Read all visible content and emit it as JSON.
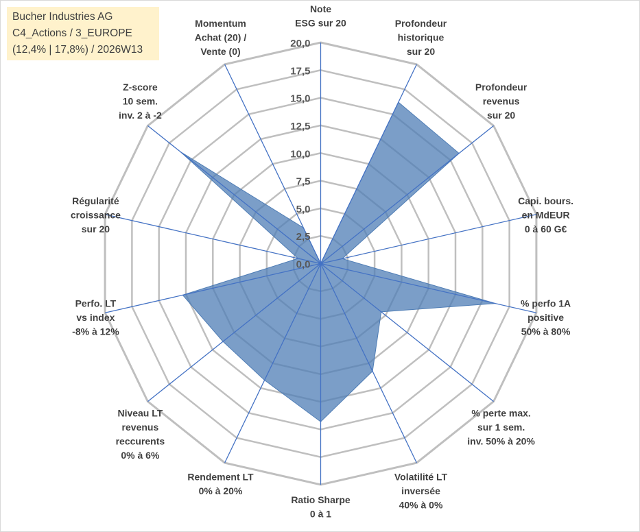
{
  "title": {
    "line1": "Bucher Industries AG",
    "line2": "C4_Actions / 3_EUROPE",
    "line3": "(12,4% | 17,8%) / 2026W13"
  },
  "colors": {
    "fill": "#4f7db5",
    "axis": "#4472c4",
    "grid": "#bfbfbf",
    "title_bg": "#fff2cc"
  },
  "chart_data": {
    "type": "radar",
    "title": "Bucher Industries AG",
    "rmin": 0,
    "rmax": 20,
    "tick_step": 2.5,
    "tick_labels": [
      "0,0",
      "2,5",
      "5,0",
      "7,5",
      "10,0",
      "12,5",
      "15,0",
      "17,5",
      "20,0"
    ],
    "axes": [
      [
        "Note",
        "ESG sur 20"
      ],
      [
        "Profondeur",
        "historique",
        "sur 20"
      ],
      [
        "Profondeur",
        "revenus",
        "sur 20"
      ],
      [
        "Capi. bours.",
        "en MdEUR",
        "0 à 60 G€"
      ],
      [
        "% perfo 1A",
        "positive",
        "50% à 80%"
      ],
      [
        "% perte max.",
        "sur 1 sem.",
        "inv. 50% à 20%"
      ],
      [
        "Volatilité LT",
        "inversée",
        "40% à 0%"
      ],
      [
        "Ratio Sharpe",
        "0 à 1"
      ],
      [
        "Rendement LT",
        "0% à 20%"
      ],
      [
        "Niveau LT",
        "revenus",
        "reccurents",
        "0% à 6%"
      ],
      [
        "Perfo. LT",
        "vs index",
        "-8% à 12%"
      ],
      [
        "Régularité",
        "croissance",
        "sur 20"
      ],
      [
        "Z-score",
        "10 sem.",
        "inv. 2 à -2"
      ],
      [
        "Momentum",
        "Achat (20) /",
        "Vente (0)"
      ]
    ],
    "series": [
      {
        "name": "Bucher Industries AG",
        "values": [
          0,
          16.2,
          16.0,
          2.0,
          16.2,
          7.0,
          10.8,
          14.3,
          11.7,
          11.3,
          12.8,
          2.1,
          16.2,
          3.6
        ]
      }
    ]
  }
}
